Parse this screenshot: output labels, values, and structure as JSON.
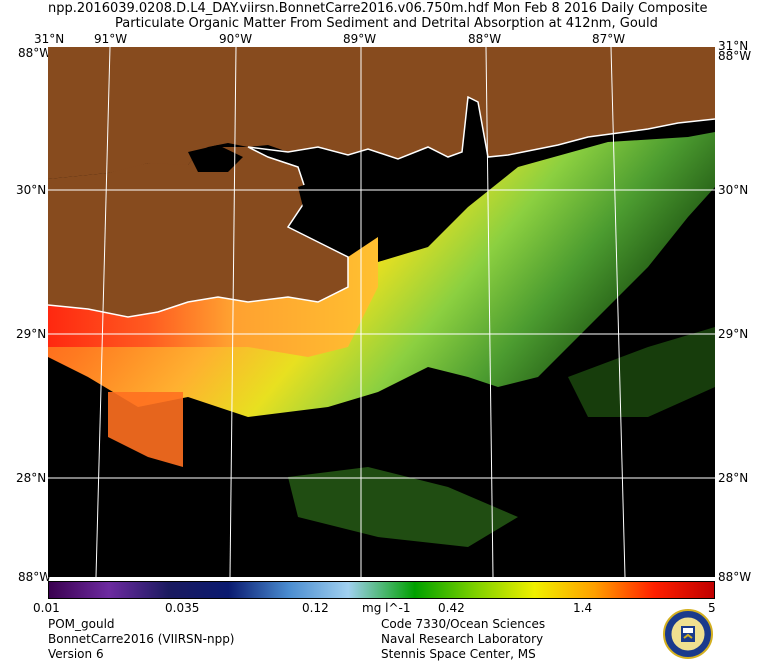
{
  "header": {
    "line1": "npp.2016039.0208.D.L4_DAY.viirsn.BonnetCarre2016.v06.750m.hdf     Mon Feb  8 2016 Daily Composite",
    "line2": "Particulate Organic Matter From Sediment and Detrital Absorption at 412nm, Gould"
  },
  "map": {
    "lon_labels": [
      "91°W",
      "90°W",
      "89°W",
      "88°W",
      "87°W"
    ],
    "lat_labels": [
      "30°N",
      "29°N",
      "28°N"
    ],
    "corner_labels": {
      "top_left": "31°N",
      "top_left_overlap": "88°W",
      "top_right": "88°W",
      "top_right_overlap": "31°N",
      "bottom_left": "88°W",
      "bottom_right": "88°W"
    },
    "colors": {
      "land": "#874b1e",
      "nodata": "#000000",
      "coast": "#ffffff"
    }
  },
  "colorbar": {
    "ticks": [
      "0.01",
      "0.035",
      "0.12",
      "0.42",
      "1.4",
      "5"
    ],
    "unit": "mg l^-1",
    "stops": [
      "#3a0050",
      "#6d2aa0",
      "#1a1a60",
      "#0a1a70",
      "#4a8cd0",
      "#a0d0f0",
      "#00a000",
      "#7cd000",
      "#f0f000",
      "#ffa000",
      "#ff2000",
      "#c00000"
    ]
  },
  "footer": {
    "left": [
      "POM_gould",
      "BonnetCarre2016 (VIIRSN-npp)",
      "Version 6"
    ],
    "right": [
      "Code 7330/Ocean Sciences",
      "Naval Research Laboratory",
      "Stennis Space Center, MS"
    ]
  }
}
